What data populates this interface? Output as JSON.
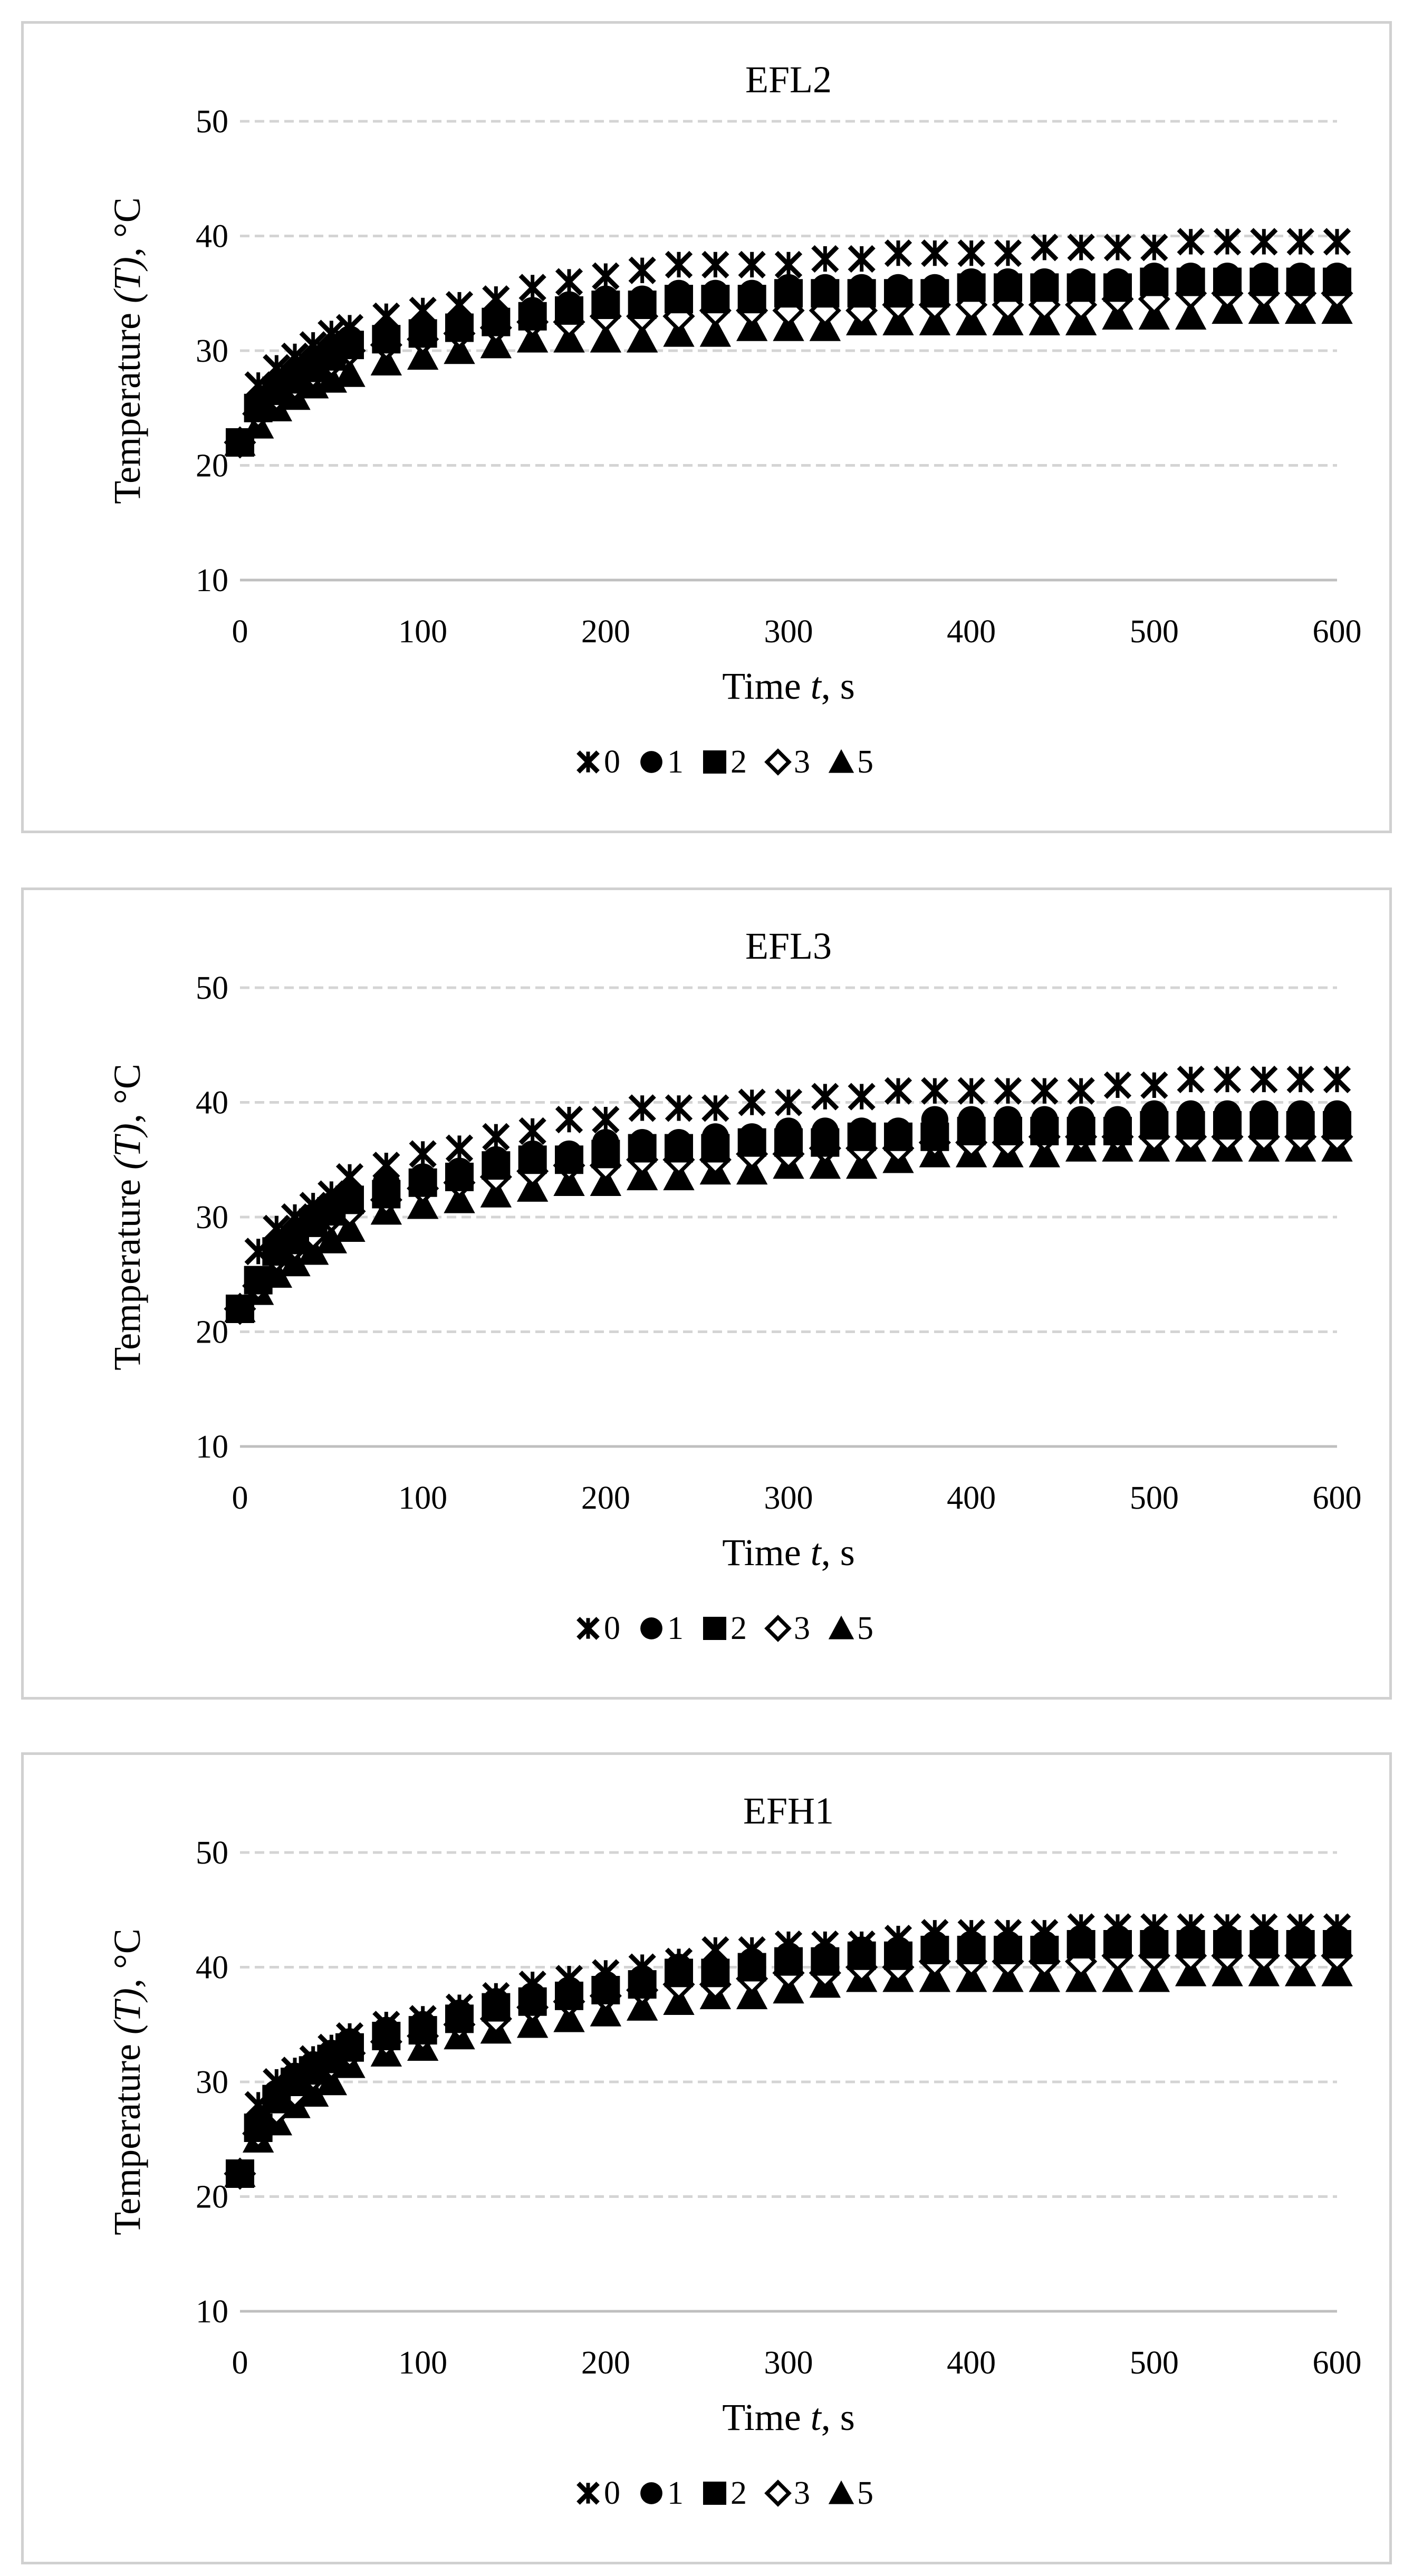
{
  "chart_data": [
    {
      "type": "scatter",
      "title": "EFL2",
      "xlabel_pre": "Time ",
      "xlabel_var": "t",
      "xlabel_post": ", s",
      "ylabel_pre": "Temperature ",
      "ylabel_var": "(T)",
      "ylabel_post": ", °C",
      "xlim": [
        0,
        600
      ],
      "ylim": [
        10,
        50
      ],
      "xticks": [
        0,
        100,
        200,
        300,
        400,
        500,
        600
      ],
      "yticks": [
        10,
        20,
        30,
        40,
        50
      ],
      "legend": [
        "0",
        "1",
        "2",
        "3",
        "5"
      ],
      "x": [
        0,
        10,
        20,
        30,
        40,
        50,
        60,
        80,
        100,
        120,
        140,
        160,
        180,
        200,
        220,
        240,
        260,
        280,
        300,
        320,
        340,
        360,
        380,
        400,
        420,
        440,
        460,
        480,
        500,
        520,
        540,
        560,
        580,
        600
      ],
      "series": [
        {
          "name": "0",
          "marker": "x",
          "values": [
            22,
            27,
            28.5,
            29.5,
            30.5,
            31.5,
            32,
            33,
            33.5,
            34,
            34.5,
            35.5,
            36,
            36.5,
            37,
            37.5,
            37.5,
            37.5,
            37.5,
            38,
            38,
            38.5,
            38.5,
            38.5,
            38.5,
            39,
            39,
            39,
            39,
            39.5,
            39.5,
            39.5,
            39.5,
            39.5
          ]
        },
        {
          "name": "1",
          "marker": "circle",
          "values": [
            22,
            25.5,
            27,
            28,
            29,
            30,
            31,
            31.5,
            32,
            32.5,
            33,
            33.5,
            34,
            34.5,
            34.5,
            35,
            35,
            35,
            35.5,
            35.5,
            35.5,
            35.5,
            35.5,
            36,
            36,
            36,
            36,
            36,
            36.5,
            36.5,
            36.5,
            36.5,
            36.5,
            36.5
          ]
        },
        {
          "name": "2",
          "marker": "square",
          "values": [
            22,
            25,
            26.5,
            27.5,
            28.5,
            29.5,
            30.5,
            31,
            31.5,
            32,
            32.5,
            33,
            33.5,
            34,
            34,
            34.5,
            34.5,
            34.5,
            35,
            35,
            35,
            35,
            35,
            35.5,
            35.5,
            35.5,
            35.5,
            35.5,
            36,
            36,
            36,
            36,
            36,
            36
          ]
        },
        {
          "name": "3",
          "marker": "diamond",
          "values": [
            22,
            24.5,
            26,
            27,
            28,
            29,
            30,
            30.5,
            31,
            31.5,
            32,
            32.5,
            32.5,
            33,
            33,
            33,
            33.5,
            33.5,
            33.5,
            33.5,
            33.5,
            34,
            34,
            34,
            34,
            34,
            34,
            34.5,
            34.5,
            35,
            35,
            35,
            35,
            35
          ]
        },
        {
          "name": "5",
          "marker": "triangle",
          "values": [
            22,
            23.5,
            25,
            26,
            27,
            27.5,
            28,
            29,
            29.5,
            30,
            30.5,
            31,
            31,
            31,
            31,
            31.5,
            31.5,
            32,
            32,
            32,
            32.5,
            32.5,
            32.5,
            32.5,
            32.5,
            32.5,
            32.5,
            33,
            33,
            33,
            33.5,
            33.5,
            33.5,
            33.5
          ]
        }
      ]
    },
    {
      "type": "scatter",
      "title": "EFL3",
      "xlabel_pre": "Time ",
      "xlabel_var": "t",
      "xlabel_post": ", s",
      "ylabel_pre": "Temperature ",
      "ylabel_var": "(T)",
      "ylabel_post": ", °C",
      "xlim": [
        0,
        600
      ],
      "ylim": [
        10,
        50
      ],
      "xticks": [
        0,
        100,
        200,
        300,
        400,
        500,
        600
      ],
      "yticks": [
        10,
        20,
        30,
        40,
        50
      ],
      "legend": [
        "0",
        "1",
        "2",
        "3",
        "5"
      ],
      "x": [
        0,
        10,
        20,
        30,
        40,
        50,
        60,
        80,
        100,
        120,
        140,
        160,
        180,
        200,
        220,
        240,
        260,
        280,
        300,
        320,
        340,
        360,
        380,
        400,
        420,
        440,
        460,
        480,
        500,
        520,
        540,
        560,
        580,
        600
      ],
      "series": [
        {
          "name": "0",
          "marker": "x",
          "values": [
            22,
            27,
            29,
            30,
            31,
            32,
            33.5,
            34.5,
            35.5,
            36,
            37,
            37.5,
            38.5,
            38.5,
            39.5,
            39.5,
            39.5,
            40,
            40,
            40.5,
            40.5,
            41,
            41,
            41,
            41,
            41,
            41,
            41.5,
            41.5,
            42,
            42,
            42,
            42,
            42
          ]
        },
        {
          "name": "1",
          "marker": "circle",
          "values": [
            22,
            24.5,
            27.5,
            28.5,
            30,
            31,
            32,
            33,
            33.5,
            34,
            35,
            35.5,
            35.5,
            36.5,
            36.5,
            36.5,
            37,
            37,
            37.5,
            37.5,
            37.5,
            37.5,
            38.5,
            38.5,
            38.5,
            38.5,
            38.5,
            38.5,
            39,
            39,
            39,
            39,
            39,
            39
          ]
        },
        {
          "name": "2",
          "marker": "square",
          "values": [
            22,
            24.5,
            27,
            28,
            29.5,
            30.5,
            31.5,
            32,
            33,
            33.5,
            34.5,
            35,
            35,
            35.5,
            36,
            36,
            36,
            36.5,
            36.5,
            36.5,
            37,
            37,
            37,
            37.5,
            37.5,
            37.5,
            37.5,
            37.5,
            38,
            38,
            38,
            38,
            38,
            38
          ]
        },
        {
          "name": "3",
          "marker": "diamond",
          "values": [
            22,
            24,
            26.5,
            27.5,
            28.5,
            30,
            30.5,
            31.5,
            32.5,
            33,
            33.5,
            34,
            34.5,
            34.5,
            35,
            35,
            35,
            35.5,
            35.5,
            36,
            36,
            36,
            36.5,
            36.5,
            36.5,
            37,
            37,
            37,
            37,
            37,
            37,
            37,
            37,
            37
          ]
        },
        {
          "name": "5",
          "marker": "triangle",
          "values": [
            22,
            23.5,
            25,
            26,
            27,
            28,
            29,
            30.5,
            31,
            31.5,
            32,
            32.5,
            33,
            33,
            33.5,
            33.5,
            34,
            34,
            34.5,
            34.5,
            34.5,
            35,
            35.5,
            35.5,
            35.5,
            35.5,
            36,
            36,
            36,
            36,
            36,
            36,
            36,
            36
          ]
        }
      ]
    },
    {
      "type": "scatter",
      "title": "EFH1",
      "xlabel_pre": "Time ",
      "xlabel_var": "t",
      "xlabel_post": ", s",
      "ylabel_pre": "Temperature ",
      "ylabel_var": "(T)",
      "ylabel_post": ", °C",
      "xlim": [
        0,
        600
      ],
      "ylim": [
        10,
        50
      ],
      "xticks": [
        0,
        100,
        200,
        300,
        400,
        500,
        600
      ],
      "yticks": [
        10,
        20,
        30,
        40,
        50
      ],
      "legend": [
        "0",
        "1",
        "2",
        "3",
        "5"
      ],
      "x": [
        0,
        10,
        20,
        30,
        40,
        50,
        60,
        80,
        100,
        120,
        140,
        160,
        180,
        200,
        220,
        240,
        260,
        280,
        300,
        320,
        340,
        360,
        380,
        400,
        420,
        440,
        460,
        480,
        500,
        520,
        540,
        560,
        580,
        600
      ],
      "series": [
        {
          "name": "0",
          "marker": "x",
          "values": [
            22,
            28,
            30,
            31,
            32,
            33,
            34,
            35,
            35.5,
            36.5,
            37.5,
            38.5,
            39,
            39.5,
            40,
            40.5,
            41.5,
            41.5,
            42,
            42,
            42,
            42.5,
            43,
            43,
            43,
            43,
            43.5,
            43.5,
            43.5,
            43.5,
            43.5,
            43.5,
            43.5,
            43.5
          ]
        },
        {
          "name": "1",
          "marker": "circle",
          "values": [
            22,
            26.5,
            29,
            30.5,
            31.5,
            32.5,
            33.5,
            34.5,
            35,
            36,
            37,
            37.5,
            38,
            38.5,
            39,
            40,
            40,
            40.5,
            41,
            41,
            41.5,
            41.5,
            42,
            42,
            42,
            42,
            42.5,
            42.5,
            42.5,
            42.5,
            42.5,
            42.5,
            42.5,
            42.5
          ]
        },
        {
          "name": "2",
          "marker": "square",
          "values": [
            22,
            26,
            28.5,
            30,
            31,
            32,
            33,
            34,
            34.5,
            35.5,
            36.5,
            37,
            37.5,
            38,
            38.5,
            39.5,
            39.5,
            40,
            40.5,
            40.5,
            41,
            41,
            41.5,
            41.5,
            41.5,
            41.5,
            42,
            42,
            42,
            42,
            42,
            42,
            42,
            42
          ]
        },
        {
          "name": "3",
          "marker": "diamond",
          "values": [
            22,
            25.5,
            27.5,
            29,
            30.5,
            31.5,
            32.5,
            33.5,
            34,
            35,
            35.5,
            36.5,
            37,
            37.5,
            38,
            38.5,
            38.5,
            39,
            39.5,
            39.5,
            40,
            40,
            40.5,
            40.5,
            40.5,
            40.5,
            40.5,
            41,
            41,
            41,
            41,
            41,
            41,
            41
          ]
        },
        {
          "name": "5",
          "marker": "triangle",
          "values": [
            22,
            25,
            26.5,
            28,
            29,
            30,
            31.5,
            32.5,
            33,
            34,
            34.5,
            35,
            35.5,
            36,
            36.5,
            37,
            37.5,
            37.5,
            38,
            38.5,
            39,
            39,
            39,
            39,
            39,
            39,
            39,
            39,
            39,
            39.5,
            39.5,
            39.5,
            39.5,
            39.5
          ]
        }
      ]
    }
  ]
}
